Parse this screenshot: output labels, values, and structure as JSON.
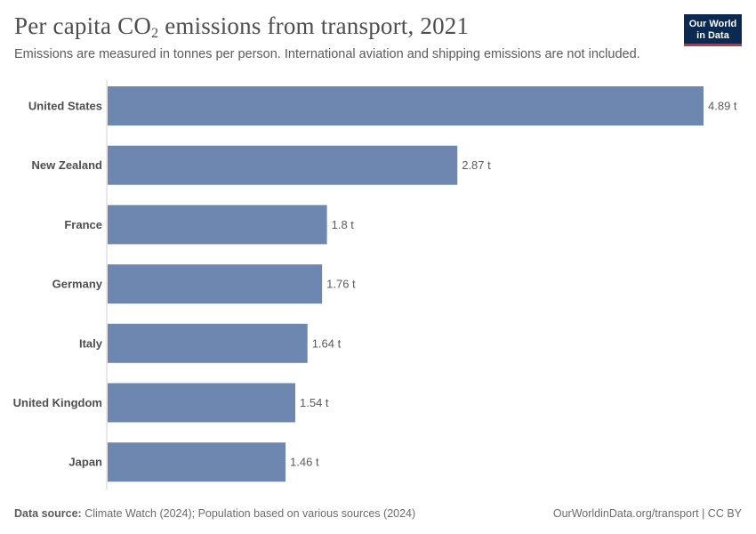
{
  "title": {
    "main": "Per capita CO",
    "subscript": "2",
    "rest": " emissions from transport, 2021"
  },
  "subtitle": "Emissions are measured in tonnes per person. International aviation and shipping emissions are not included.",
  "logo": {
    "line1": "Our World",
    "line2": "in Data"
  },
  "footer": {
    "source_label": "Data source:",
    "source_text": " Climate Watch (2024); Population based on various sources (2024)",
    "right": "OurWorldinData.org/transport | CC BY"
  },
  "colors": {
    "bar": "#6d87b0",
    "axis": "#d0d0d0",
    "label": "#4e4e4e",
    "value": "#5b5b5b"
  },
  "chart_data": {
    "type": "bar",
    "orientation": "horizontal",
    "unit": "t",
    "categories": [
      "United States",
      "New Zealand",
      "France",
      "Germany",
      "Italy",
      "United Kingdom",
      "Japan"
    ],
    "values": [
      4.89,
      2.87,
      1.8,
      1.76,
      1.64,
      1.54,
      1.46
    ],
    "value_labels": [
      "4.89 t",
      "2.87 t",
      "1.8 t",
      "1.76 t",
      "1.64 t",
      "1.54 t",
      "1.46 t"
    ],
    "xlim": [
      0,
      4.89
    ],
    "grid": false
  }
}
